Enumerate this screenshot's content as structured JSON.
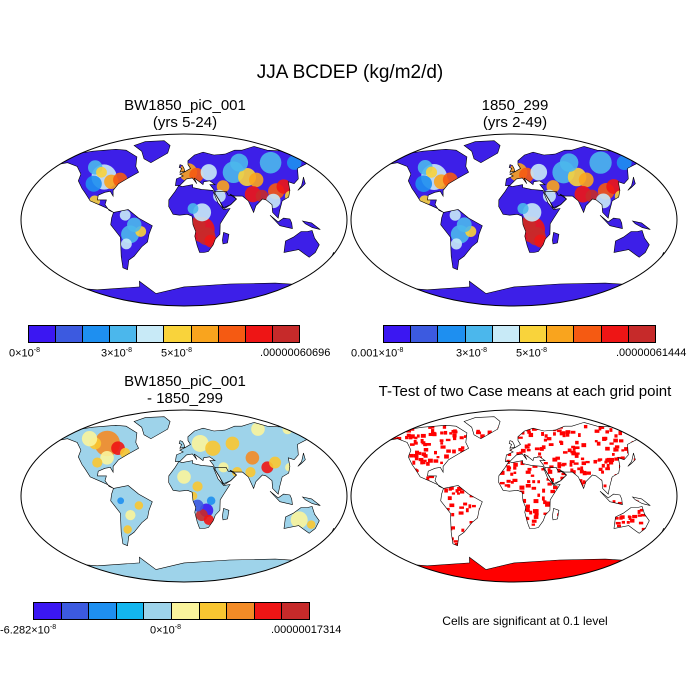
{
  "title": "JJA BCDEP (kg/m2/d)",
  "colors": {
    "seq": [
      "#3b17f2",
      "#3c5ae0",
      "#1e8ff0",
      "#4bb7ec",
      "#c8eaf7",
      "#f9d33b",
      "#f9a41e",
      "#f55a12",
      "#ee1515",
      "#c62a2a"
    ],
    "diff": [
      "#3b17f2",
      "#3c5ae0",
      "#1e8ff0",
      "#13b6ef",
      "#9ed3ea",
      "#faf49c",
      "#f9c631",
      "#f38b26",
      "#ee1515",
      "#c62a2a"
    ],
    "land_base": "#3d1fe8",
    "diff_base": "#9ed3ea",
    "sig": "#ff0000"
  },
  "panels": {
    "p1": {
      "title_line1": "BW1850_piC_001",
      "title_line2": "(yrs 5-24)",
      "cbar_min_base": "0×10",
      "cbar_min_exp": "-8",
      "cbar_mid1_base": "3×10",
      "cbar_mid1_exp": "-8",
      "cbar_mid2_base": "5×10",
      "cbar_mid2_exp": "-8",
      "cbar_max": ".00000060696"
    },
    "p2": {
      "title_line1": "1850_299",
      "title_line2": "(yrs 2-49)",
      "cbar_min_base": "0.001×10",
      "cbar_min_exp": "-8",
      "cbar_mid1_base": "3×10",
      "cbar_mid1_exp": "-8",
      "cbar_mid2_base": "5×10",
      "cbar_mid2_exp": "-8",
      "cbar_max": ".00000061444"
    },
    "p3": {
      "title_line1": "BW1850_piC_001",
      "title_line2": "- 1850_299",
      "cbar_min_base": "-6.282×10",
      "cbar_min_exp": "-8",
      "cbar_mid_base": "0×10",
      "cbar_mid_exp": "-8",
      "cbar_max": ".00000017314"
    },
    "p4": {
      "title": "T-Test of two Case means at each grid point",
      "note": "Cells are significant at 0.1 level"
    }
  }
}
